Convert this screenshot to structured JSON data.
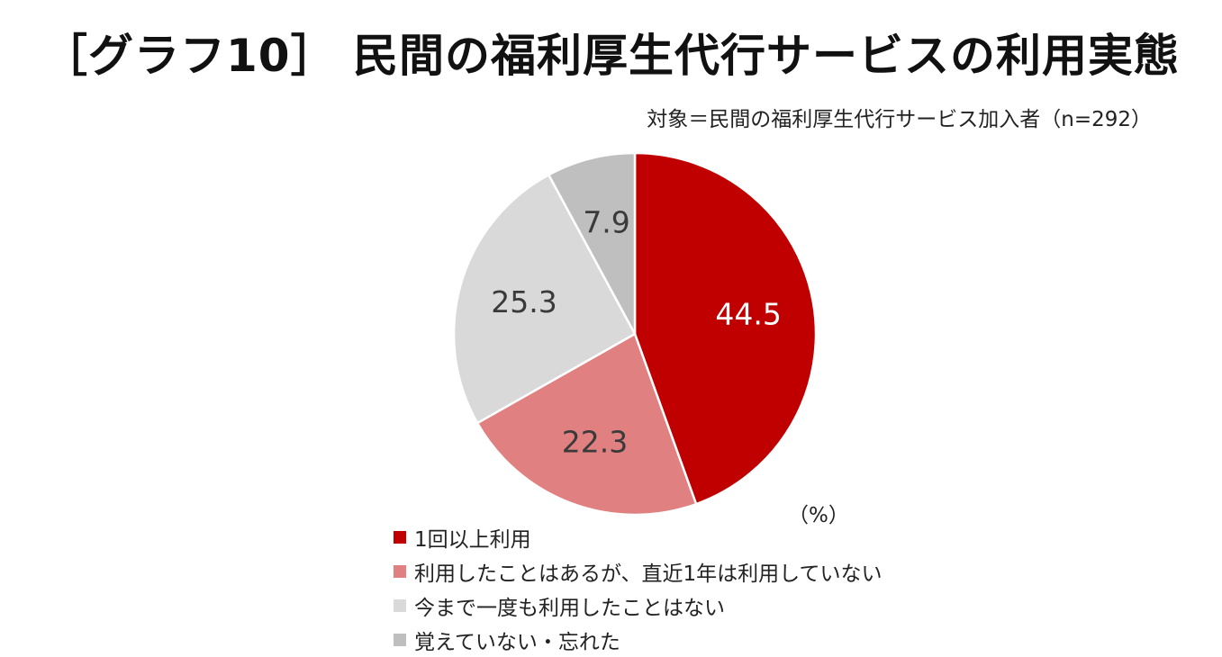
{
  "title": "［グラフ10］ 民間の福利厚生代行サービスの利用実態",
  "subtitle": "対象＝民間の福利厚生代行サービス加入者（n=292）",
  "unit_label": "（%）",
  "chart_data": {
    "type": "pie",
    "title": "［グラフ10］ 民間の福利厚生代行サービスの利用実態",
    "subtitle": "対象＝民間の福利厚生代行サービス加入者（n=292）",
    "unit": "（%）",
    "legend_position": "bottom",
    "start": "12 o'clock, clockwise",
    "slices": [
      {
        "label": "1回以上利用",
        "value": 44.5,
        "value_label": "44.5",
        "color": "#C00000",
        "label_color": "#ffffff"
      },
      {
        "label": "利用したことはあるが、直近1年は利用していない",
        "value": 22.3,
        "value_label": "22.3",
        "color": "#E08080",
        "label_color": "#3a3a3a"
      },
      {
        "label": "今まで一度も利用したことはない",
        "value": 25.3,
        "value_label": "25.3",
        "color": "#D9D9D9",
        "label_color": "#3a3a3a"
      },
      {
        "label": "覚えていない・忘れた",
        "value": 7.9,
        "value_label": "7.9",
        "color": "#BFBFBF",
        "label_color": "#3a3a3a"
      }
    ]
  }
}
